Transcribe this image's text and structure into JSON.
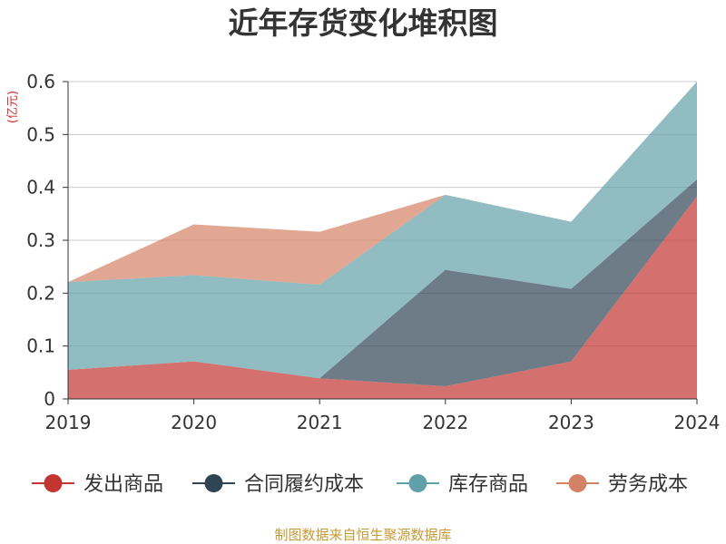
{
  "chart_data": {
    "type": "area",
    "stacked": true,
    "title": "近年存货变化堆积图",
    "unit_label": "(亿元)",
    "x": [
      "2019",
      "2020",
      "2021",
      "2022",
      "2023",
      "2024"
    ],
    "ylim": [
      0,
      0.6
    ],
    "yticks": [
      "0",
      "0.1",
      "0.2",
      "0.3",
      "0.4",
      "0.5",
      "0.6"
    ],
    "grid": true,
    "legend_position": "bottom",
    "series": [
      {
        "name": "发出商品",
        "color": "#c23531",
        "values": [
          0.055,
          0.071,
          0.039,
          0.024,
          0.071,
          0.383
        ]
      },
      {
        "name": "合同履约成本",
        "color": "#2f4554",
        "values": [
          0,
          0,
          0,
          0.22,
          0.137,
          0.032
        ]
      },
      {
        "name": "库存商品",
        "color": "#61a0a8",
        "values": [
          0.166,
          0.163,
          0.177,
          0.142,
          0.127,
          0.185
        ]
      },
      {
        "name": "劳务成本",
        "color": "#d48265",
        "values": [
          0,
          0.096,
          0.1,
          0,
          0,
          0
        ]
      }
    ]
  },
  "source_text": "制图数据来自恒生聚源数据库"
}
